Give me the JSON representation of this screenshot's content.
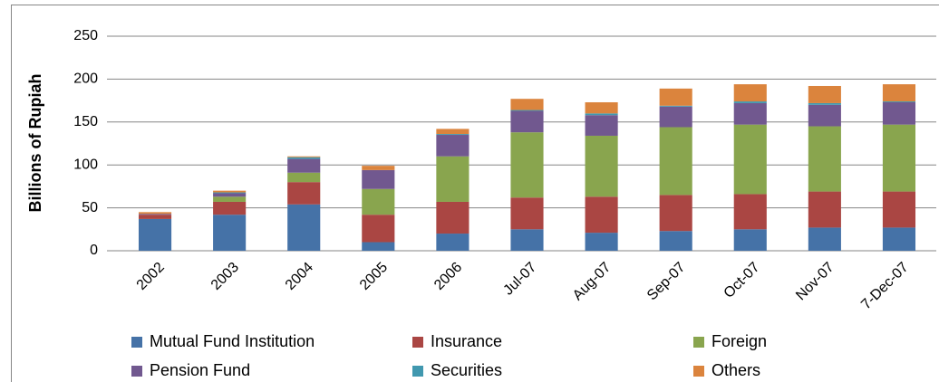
{
  "chart_data": {
    "type": "stacked_bar",
    "ylabel": "Billions of Rupiah",
    "categories": [
      "2002",
      "2003",
      "2004",
      "2005",
      "2006",
      "Jul-07",
      "Aug-07",
      "Sep-07",
      "Oct-07",
      "Nov-07",
      "7-Dec-07"
    ],
    "series": [
      {
        "name": "Mutual Fund Institution",
        "color": "#4572a7",
        "values": [
          37,
          42,
          54,
          10,
          20,
          25,
          21,
          23,
          25,
          27,
          27
        ]
      },
      {
        "name": "Insurance",
        "color": "#aa4643",
        "values": [
          5,
          15,
          26,
          32,
          37,
          37,
          42,
          42,
          41,
          42,
          42
        ]
      },
      {
        "name": "Foreign",
        "color": "#89a54e",
        "values": [
          0,
          6,
          11,
          30,
          53,
          76,
          71,
          79,
          81,
          76,
          78
        ]
      },
      {
        "name": "Pension Fund",
        "color": "#71588f",
        "values": [
          1,
          4,
          16,
          22,
          25,
          25,
          24,
          24,
          25,
          25,
          26
        ]
      },
      {
        "name": "Securities",
        "color": "#4198af",
        "values": [
          0,
          1,
          2,
          0,
          1,
          1,
          2,
          1,
          2,
          2,
          1
        ]
      },
      {
        "name": "Others",
        "color": "#db843d",
        "values": [
          2,
          2,
          1,
          5,
          6,
          13,
          13,
          20,
          20,
          20,
          20
        ]
      }
    ],
    "ylim": [
      0,
      250
    ],
    "yticks": [
      0,
      50,
      100,
      150,
      200,
      250
    ],
    "grid": true,
    "legend": "bottom"
  }
}
